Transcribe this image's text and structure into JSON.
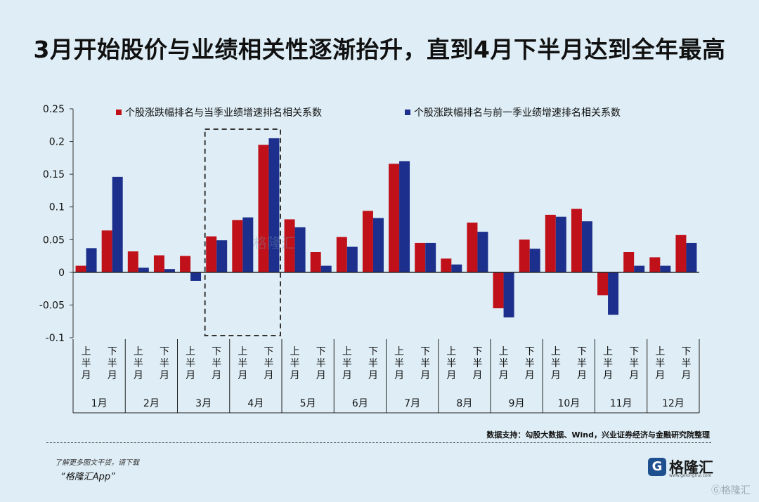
{
  "title": "3月开始股价与业绩相关性逐渐抬升，直到4月下半月达到全年最高",
  "source_note": "数据支持：勾股大数据、Wind，兴业证券经济与金融研究院整理",
  "footer": {
    "note": "了解更多图文干货，请下载",
    "app": "“格隆汇App”",
    "brand_mark": "G",
    "brand_name": "格隆汇",
    "brand_sub": "www.gelonghui.com",
    "watermark": "Ⓖ格隆汇",
    "center_watermark": "格隆汇"
  },
  "chart_data": {
    "type": "bar",
    "categories": [
      "1月上半月",
      "1月下半月",
      "2月上半月",
      "2月下半月",
      "3月上半月",
      "3月下半月",
      "4月上半月",
      "4月下半月",
      "5月上半月",
      "5月下半月",
      "6月上半月",
      "6月下半月",
      "7月上半月",
      "7月下半月",
      "8月上半月",
      "8月下半月",
      "9月上半月",
      "9月下半月",
      "10月上半月",
      "10月下半月",
      "11月上半月",
      "11月下半月",
      "12月上半月",
      "12月下半月"
    ],
    "half_labels": [
      "上半月",
      "下半月"
    ],
    "months": [
      "1月",
      "2月",
      "3月",
      "4月",
      "5月",
      "6月",
      "7月",
      "8月",
      "9月",
      "10月",
      "11月",
      "12月"
    ],
    "series": [
      {
        "name": "个股涨跌幅排名与当季业绩增速排名相关系数",
        "color": "#c0111a",
        "values": [
          0.01,
          0.064,
          0.032,
          0.026,
          0.025,
          0.055,
          0.08,
          0.195,
          0.081,
          0.031,
          0.054,
          0.094,
          0.166,
          0.045,
          0.021,
          0.076,
          -0.055,
          0.05,
          0.088,
          0.097,
          -0.035,
          0.031,
          0.023,
          0.057
        ]
      },
      {
        "name": "个股涨跌幅排名与前一季业绩增速排名相关系数",
        "color": "#1c2f8c",
        "values": [
          0.037,
          0.146,
          0.007,
          0.005,
          -0.013,
          0.049,
          0.084,
          0.205,
          0.069,
          0.01,
          0.039,
          0.083,
          0.17,
          0.045,
          0.012,
          0.062,
          -0.069,
          0.036,
          0.085,
          0.078,
          -0.065,
          0.01,
          0.01,
          0.045
        ]
      }
    ],
    "y_ticks": [
      0.25,
      0.2,
      0.15,
      0.1,
      0.05,
      0,
      -0.05,
      -0.1
    ],
    "y_tick_labels": [
      "0.25",
      "0.2",
      "0.15",
      "0.1",
      "0.05",
      "0",
      "-0.05",
      "-0.1"
    ],
    "ylim": [
      -0.1,
      0.25
    ],
    "highlight": {
      "from_category": "3月下半月",
      "to_category": "4月下半月",
      "style": "dashed box"
    },
    "legend_position": "top",
    "grid": false
  }
}
